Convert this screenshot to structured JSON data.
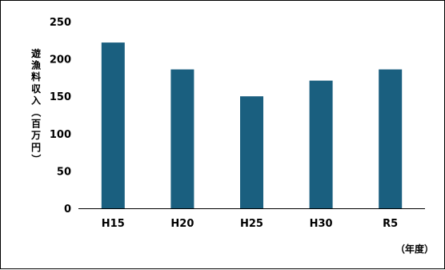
{
  "chart_data": {
    "type": "bar",
    "categories": [
      "H15",
      "H20",
      "H25",
      "H30",
      "R5"
    ],
    "values": [
      222,
      186,
      150,
      171,
      186
    ],
    "ylabel": "遊漁料収入（百万円）",
    "xunit": "（年度）",
    "ylim": [
      0,
      250
    ],
    "yticks": [
      0,
      50,
      100,
      150,
      200,
      250
    ],
    "bar_color": "#1a5f7f",
    "axis_color": "#000000",
    "grid": false,
    "legend": "none"
  }
}
